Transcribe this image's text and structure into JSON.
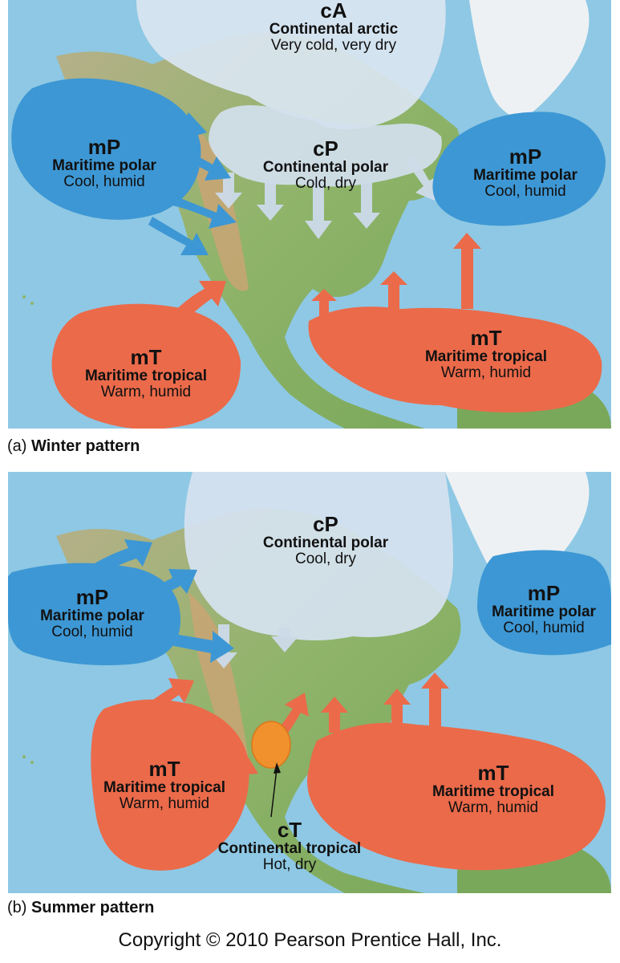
{
  "winter": {
    "caption_prefix": "(a)",
    "caption_title": "Winter pattern",
    "air_masses": {
      "cA": {
        "code": "cA",
        "name": "Continental arctic",
        "desc": "Very cold, very dry"
      },
      "cP": {
        "code": "cP",
        "name": "Continental polar",
        "desc": "Cold, dry"
      },
      "mP_pacific": {
        "code": "mP",
        "name": "Maritime polar",
        "desc": "Cool, humid"
      },
      "mP_atlantic": {
        "code": "mP",
        "name": "Maritime polar",
        "desc": "Cool, humid"
      },
      "mT_pacific": {
        "code": "mT",
        "name": "Maritime tropical",
        "desc": "Warm, humid"
      },
      "mT_gulf": {
        "code": "mT",
        "name": "Maritime tropical",
        "desc": "Warm, humid"
      }
    }
  },
  "summer": {
    "caption_prefix": "(b)",
    "caption_title": "Summer pattern",
    "air_masses": {
      "cP": {
        "code": "cP",
        "name": "Continental polar",
        "desc": "Cool, dry"
      },
      "mP_pacific": {
        "code": "mP",
        "name": "Maritime polar",
        "desc": "Cool, humid"
      },
      "mP_atlantic": {
        "code": "mP",
        "name": "Maritime polar",
        "desc": "Cool, humid"
      },
      "mT_pacific": {
        "code": "mT",
        "name": "Maritime tropical",
        "desc": "Warm, humid"
      },
      "mT_gulf": {
        "code": "mT",
        "name": "Maritime tropical",
        "desc": "Warm, humid"
      },
      "cT": {
        "code": "cT",
        "name": "Continental tropical",
        "desc": "Hot, dry"
      }
    }
  },
  "copyright": "Copyright © 2010 Pearson Prentice Hall, Inc.",
  "colors": {
    "ocean": "#8ec8e4",
    "land_green": "#8fb46a",
    "land_mountain": "#c9a574",
    "ice": "#eef1f4",
    "continental_air": "#d5e2f0",
    "maritime_polar": "#3d97d4",
    "maritime_tropical": "#eb6a4a",
    "continental_tropical": "#f0912e"
  }
}
